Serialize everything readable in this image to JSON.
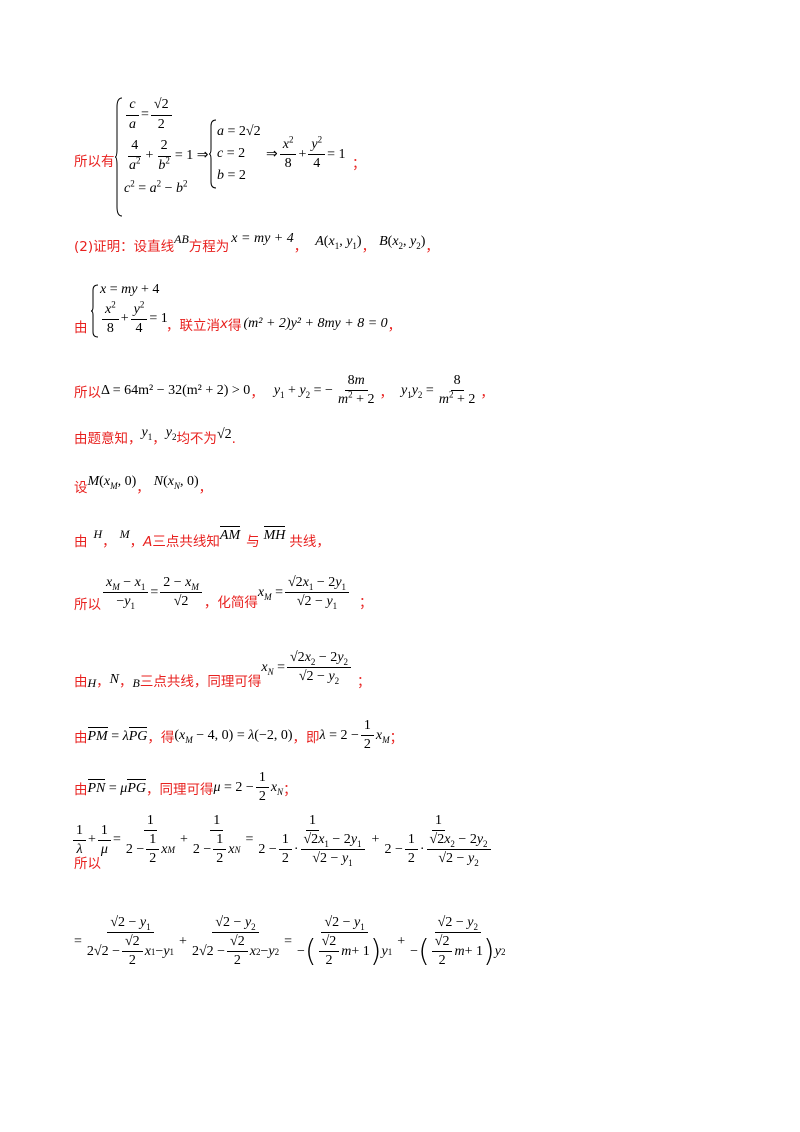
{
  "colors": {
    "text_red": "#e8211f",
    "text_black": "#000000"
  },
  "lines": {
    "l1_label": "所以有",
    "l1_semicolon": "；",
    "l2_label": "(2)证明：设直线",
    "l2_ab": "AB",
    "l2_mid": "方程为",
    "l2_eq": "x = my + 4",
    "l3_prefix": "由",
    "l3_mid": "，联立消",
    "l3_x": "x",
    "l3_de": "得",
    "l3_eq": "(m² + 2)y² + 8my + 8 = 0",
    "l4_label": "所以",
    "l4_delta": "Δ = 64m² − 32(m² + 2) > 0",
    "l5_text1": "由题意知，",
    "l5_text2": "均不为",
    "l6_label": "设",
    "l7_text1": "由",
    "l7_text2": "三点共线知",
    "l7_text3": "与",
    "l7_text4": "共线，",
    "l8_label": "所以",
    "l8_mid": "，化简得",
    "l8_end": "；",
    "l9_text1": "由",
    "l9_text2": "三点共线，同理可得",
    "l9_end": "；",
    "l10_text1": "由",
    "l10_text2": "，得",
    "l10_text3": "，即",
    "l10_end": "；",
    "l11_text1": "由",
    "l11_text2": "，同理可得",
    "l11_end": "；",
    "l12_label": "所以"
  }
}
